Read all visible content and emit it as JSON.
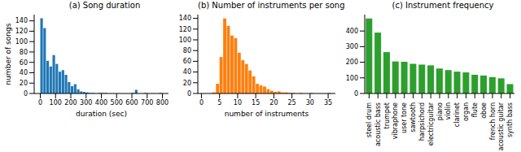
{
  "chart_data": [
    {
      "type": "histogram",
      "title": "(a) Song duration",
      "x_label": "duration (sec)",
      "y_label": "number of songs",
      "bins": [
        0,
        20,
        40,
        60,
        80,
        100,
        120,
        140,
        160,
        180,
        200,
        220,
        240,
        260,
        280,
        300,
        320,
        340,
        360,
        380,
        400,
        420,
        440,
        460,
        480,
        500,
        520,
        540,
        560,
        580,
        600,
        620,
        640,
        660,
        680,
        700,
        720,
        740,
        760,
        780,
        800
      ],
      "values": [
        145,
        126,
        63,
        52,
        74,
        57,
        42,
        45,
        36,
        22,
        14,
        18,
        8,
        4,
        3,
        2,
        1,
        1,
        0,
        1,
        1,
        1,
        0,
        0,
        0,
        0,
        0,
        0,
        0,
        0,
        1,
        7,
        0,
        0,
        1,
        0,
        0,
        0,
        0,
        1
      ],
      "color": "#1f77b4",
      "xlim": [
        -40,
        840
      ],
      "xticks": [
        0,
        100,
        200,
        300,
        400,
        500,
        600,
        700,
        800
      ],
      "ylim": [
        0,
        152
      ],
      "yticks": [
        0,
        20,
        40,
        60,
        80,
        100,
        120,
        140
      ]
    },
    {
      "type": "histogram",
      "title": "(b) Number of instruments per song",
      "x_label": "number of instruments",
      "bins": [
        3,
        4,
        5,
        6,
        7,
        8,
        9,
        10,
        11,
        12,
        13,
        14,
        15,
        16,
        17,
        18,
        19,
        20,
        21,
        22,
        23,
        24,
        25,
        26,
        27,
        28,
        29,
        30,
        31,
        32,
        33,
        34,
        35,
        36
      ],
      "values": [
        2,
        18,
        68,
        140,
        126,
        108,
        103,
        76,
        62,
        55,
        43,
        32,
        18,
        15,
        13,
        8,
        5,
        3,
        4,
        2,
        2,
        1,
        1,
        0,
        1,
        0,
        0,
        1,
        0,
        0,
        0,
        0,
        1
      ],
      "color": "#ff7f0e",
      "xlim": [
        -1,
        37
      ],
      "xticks": [
        0,
        5,
        10,
        15,
        20,
        25,
        30,
        35
      ],
      "ylim": [
        0,
        147
      ],
      "yticks": [
        0,
        20,
        40,
        60,
        80,
        100,
        120,
        140
      ]
    },
    {
      "type": "bar",
      "title": "(c) Instrument frequency",
      "categories": [
        "steel drum",
        "acoustic bass",
        "trumpet",
        "vibraphone",
        "user tone",
        "sawtooth",
        "harpsichord",
        "electricguitar",
        "piano",
        "violin",
        "clarinet",
        "organ",
        "flute",
        "oboe",
        "french horn",
        "acoustic guitar",
        "synth bass"
      ],
      "values": [
        480,
        390,
        265,
        205,
        203,
        190,
        185,
        180,
        160,
        150,
        140,
        135,
        120,
        115,
        105,
        97,
        60
      ],
      "color": "#2ca02c",
      "ylim": [
        0,
        505
      ],
      "yticks": [
        0,
        100,
        200,
        300,
        400
      ]
    }
  ]
}
